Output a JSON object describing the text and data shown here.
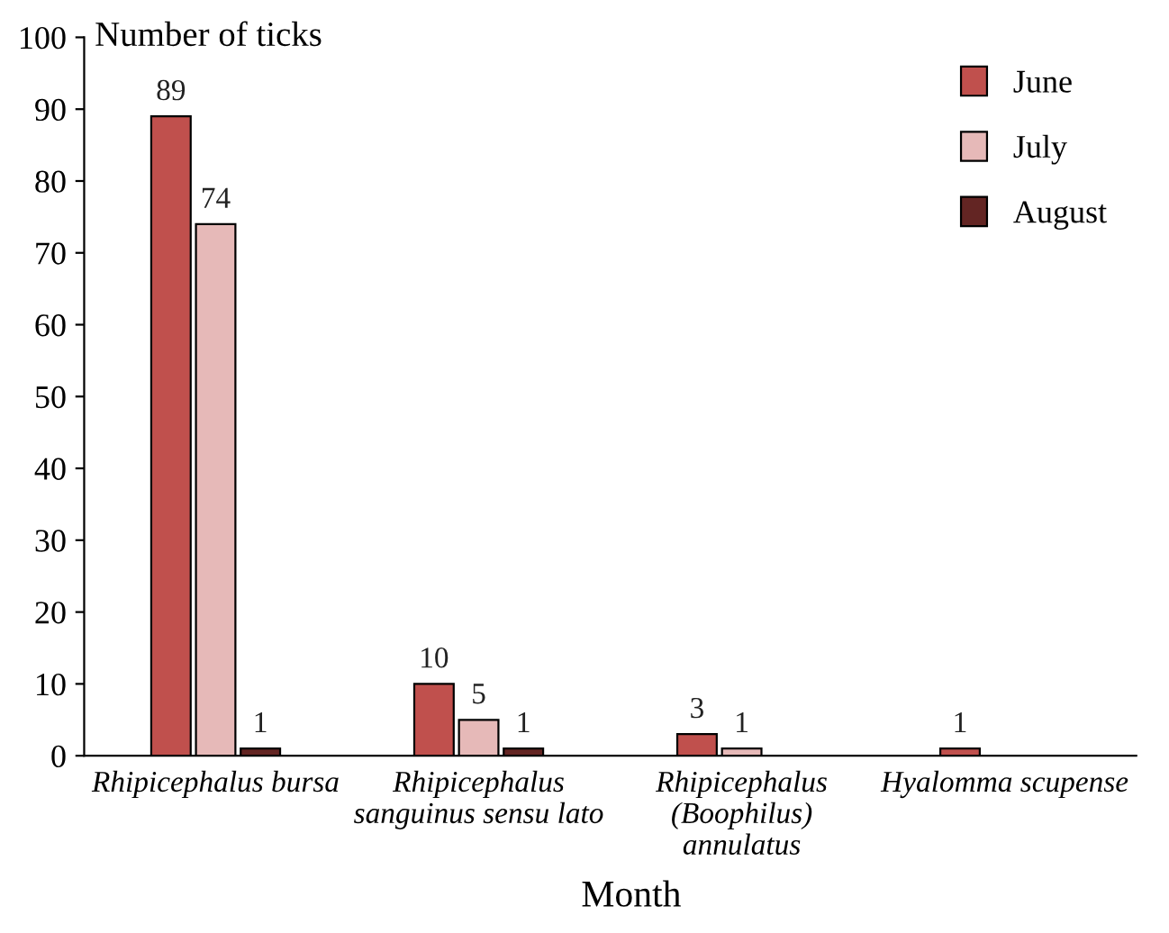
{
  "chart_data": {
    "type": "bar",
    "ylabel": "Number of ticks",
    "xlabel": "Month",
    "categories": [
      "Rhipicephalus bursa",
      "Rhipicephalus\nsanguinus sensu lato",
      "Rhipicephalus\n(Boophilus)\nannulatus",
      "Hyalomma scupense"
    ],
    "series": [
      {
        "name": "June",
        "color": "#c0504d",
        "values": [
          89,
          10,
          3,
          1
        ]
      },
      {
        "name": "July",
        "color": "#e6b9b8",
        "values": [
          74,
          5,
          1,
          null
        ]
      },
      {
        "name": "August",
        "color": "#632523",
        "values": [
          1,
          1,
          null,
          null
        ]
      }
    ],
    "ylim": [
      0,
      100
    ],
    "yticks": [
      0,
      10,
      20,
      30,
      40,
      50,
      60,
      70,
      80,
      90,
      100
    ],
    "grid": false,
    "legend": "top right",
    "data_labels": true
  }
}
